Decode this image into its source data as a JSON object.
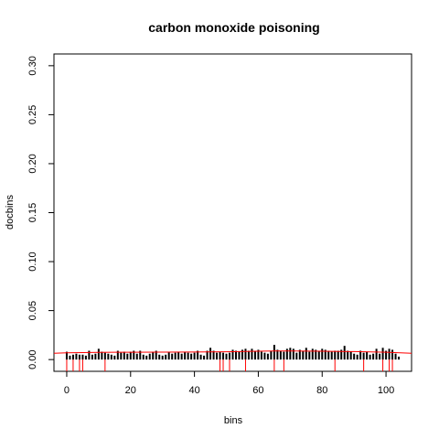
{
  "chart_data": {
    "type": "bar",
    "title": "carbon monoxide poisoning",
    "xlabel": "bins",
    "ylabel": "docbins",
    "xlim": [
      -4,
      108
    ],
    "ylim": [
      -0.012,
      0.312
    ],
    "x_ticks": [
      0,
      20,
      40,
      60,
      80,
      100
    ],
    "x_tick_labels": [
      "0",
      "20",
      "40",
      "60",
      "80",
      "100"
    ],
    "y_ticks": [
      0.0,
      0.05,
      0.1,
      0.15,
      0.2,
      0.25,
      0.3
    ],
    "y_tick_labels": [
      "0.00",
      "0.05",
      "0.10",
      "0.15",
      "0.20",
      "0.25",
      "0.30"
    ],
    "series": [
      {
        "type": "bar",
        "color": "#000000",
        "x": [
          0,
          1,
          2,
          3,
          4,
          5,
          6,
          7,
          8,
          9,
          10,
          11,
          12,
          13,
          14,
          15,
          16,
          17,
          18,
          19,
          20,
          21,
          22,
          23,
          24,
          25,
          26,
          27,
          28,
          29,
          30,
          31,
          32,
          33,
          34,
          35,
          36,
          37,
          38,
          39,
          40,
          41,
          42,
          43,
          44,
          45,
          46,
          47,
          48,
          49,
          50,
          51,
          52,
          53,
          54,
          55,
          56,
          57,
          58,
          59,
          60,
          61,
          62,
          63,
          64,
          65,
          66,
          67,
          68,
          69,
          70,
          71,
          72,
          73,
          74,
          75,
          76,
          77,
          78,
          79,
          80,
          81,
          82,
          83,
          84,
          85,
          86,
          87,
          88,
          89,
          90,
          91,
          92,
          93,
          94,
          95,
          96,
          97,
          98,
          99,
          100,
          101,
          102,
          103,
          104
        ],
        "values": [
          0.008,
          0.004,
          0.005,
          0.006,
          0.005,
          0.005,
          0.004,
          0.009,
          0.005,
          0.006,
          0.011,
          0.008,
          0.007,
          0.006,
          0.005,
          0.004,
          0.009,
          0.007,
          0.008,
          0.006,
          0.008,
          0.009,
          0.006,
          0.009,
          0.005,
          0.004,
          0.006,
          0.008,
          0.009,
          0.005,
          0.004,
          0.005,
          0.008,
          0.006,
          0.007,
          0.008,
          0.006,
          0.008,
          0.007,
          0.006,
          0.007,
          0.009,
          0.005,
          0.004,
          0.009,
          0.012,
          0.009,
          0.007,
          0.008,
          0.007,
          0.006,
          0.007,
          0.01,
          0.009,
          0.008,
          0.01,
          0.011,
          0.009,
          0.011,
          0.009,
          0.01,
          0.008,
          0.007,
          0.006,
          0.009,
          0.015,
          0.01,
          0.009,
          0.008,
          0.011,
          0.012,
          0.011,
          0.007,
          0.01,
          0.009,
          0.012,
          0.008,
          0.011,
          0.01,
          0.009,
          0.011,
          0.01,
          0.009,
          0.008,
          0.009,
          0.009,
          0.01,
          0.014,
          0.009,
          0.008,
          0.006,
          0.005,
          0.009,
          0.007,
          0.008,
          0.005,
          0.006,
          0.011,
          0.006,
          0.012,
          0.009,
          0.011,
          0.01,
          0.006,
          0.003
        ]
      },
      {
        "type": "rug",
        "color": "#ff0000",
        "x": [
          0,
          2,
          4,
          5,
          12,
          48,
          49,
          51,
          56,
          65,
          68,
          84,
          93,
          99,
          101,
          102
        ]
      },
      {
        "type": "line",
        "color": "#ff0000",
        "x": [
          -4,
          0,
          10,
          20,
          30,
          40,
          50,
          60,
          65,
          70,
          80,
          90,
          100,
          108
        ],
        "values": [
          0.0065,
          0.0069,
          0.0074,
          0.0075,
          0.0076,
          0.0077,
          0.008,
          0.0085,
          0.0088,
          0.0087,
          0.0085,
          0.0082,
          0.0075,
          0.0064
        ]
      }
    ],
    "grid": false,
    "legend": "none"
  }
}
